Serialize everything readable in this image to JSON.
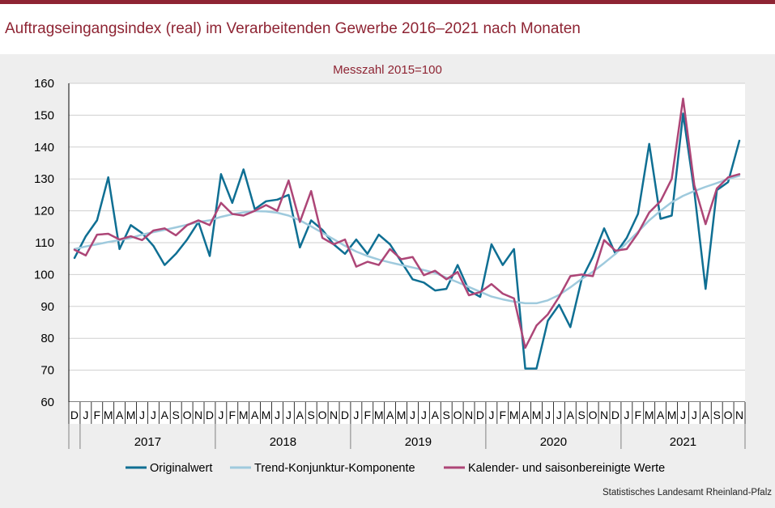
{
  "header": {
    "title": "Auftragseingangsindex (real) im Verarbeitenden Gewerbe 2016–2021 nach Monaten"
  },
  "source": "Statistisches Landesamt Rheinland-Pfalz",
  "chart_data": {
    "type": "line",
    "subtitle": "Messzahl 2015=100",
    "ylim": [
      60,
      160
    ],
    "yticks": [
      60,
      70,
      80,
      90,
      100,
      110,
      120,
      130,
      140,
      150,
      160
    ],
    "grid": true,
    "legend_position": "bottom",
    "month_labels": [
      "D",
      "J",
      "F",
      "M",
      "A",
      "M",
      "J",
      "J",
      "A",
      "S",
      "O",
      "N",
      "D",
      "J",
      "F",
      "M",
      "A",
      "M",
      "J",
      "J",
      "A",
      "S",
      "O",
      "N",
      "D",
      "J",
      "F",
      "M",
      "A",
      "M",
      "J",
      "J",
      "A",
      "S",
      "O",
      "N",
      "D",
      "J",
      "F",
      "M",
      "A",
      "M",
      "J",
      "J",
      "A",
      "S",
      "O",
      "N",
      "D",
      "J",
      "F",
      "M",
      "A",
      "M",
      "J",
      "J",
      "A",
      "S",
      "O",
      "N"
    ],
    "year_groups": [
      {
        "label": "2017",
        "start": 1,
        "end": 12
      },
      {
        "label": "2018",
        "start": 13,
        "end": 24
      },
      {
        "label": "2019",
        "start": 25,
        "end": 36
      },
      {
        "label": "2020",
        "start": 37,
        "end": 48
      },
      {
        "label": "2021",
        "start": 49,
        "end": 59
      }
    ],
    "series": [
      {
        "name": "Originalwert",
        "color": "#0f6f93",
        "width": 2.5,
        "values": [
          105.2,
          112,
          117,
          130.5,
          108,
          115.5,
          113,
          109,
          103,
          106.5,
          111,
          116.5,
          105.8,
          131.5,
          122.5,
          133,
          120.5,
          123,
          123.5,
          125,
          108.5,
          117,
          114,
          109.5,
          106.5,
          111,
          106.5,
          112.5,
          109.5,
          104,
          98.5,
          97.5,
          95,
          95.5,
          103,
          95,
          93,
          109.5,
          103,
          108,
          70.5,
          70.5,
          85.5,
          90.5,
          83.5,
          98.5,
          105.5,
          114.5,
          106.5,
          111.5,
          119,
          141,
          117.5,
          118.5,
          150.5,
          126,
          95.5,
          126.5,
          129,
          142
        ]
      },
      {
        "name": "Trend-Konjunktur-Komponente",
        "color": "#9fcadd",
        "width": 2.5,
        "values": [
          108,
          108.8,
          109.5,
          110.2,
          110.8,
          111.5,
          112.5,
          113.3,
          114,
          114.8,
          115.6,
          116.5,
          117,
          118.1,
          118.9,
          119.5,
          119.9,
          119.8,
          119.4,
          118.5,
          117,
          115.1,
          113.1,
          111.1,
          109,
          107.2,
          105.8,
          104.7,
          103.8,
          103,
          102.2,
          101.4,
          100.5,
          99,
          97.6,
          96.1,
          94.6,
          93.1,
          92.2,
          91.5,
          91,
          91,
          91.9,
          93.6,
          96,
          98.6,
          100.9,
          103.6,
          106.5,
          109.9,
          113.4,
          117,
          120,
          122.7,
          124.7,
          126.2,
          127.5,
          128.7,
          130,
          131
        ]
      },
      {
        "name": "Kalender- und saisonbereinigte Werte",
        "color": "#ad4677",
        "width": 2.5,
        "values": [
          107.8,
          106,
          112.5,
          112.8,
          111,
          112,
          110.8,
          113.8,
          114.5,
          112.3,
          115.5,
          117,
          115.5,
          122.5,
          119,
          118.5,
          120,
          121.8,
          120,
          129.5,
          116.5,
          126.2,
          111.5,
          109.5,
          111,
          102.5,
          104,
          103,
          108,
          104.8,
          105.5,
          99.8,
          101.2,
          98.5,
          100.8,
          93.5,
          94.5,
          97,
          94,
          92.5,
          77,
          84,
          87.5,
          93,
          99.5,
          100,
          99.5,
          110.8,
          107.5,
          108,
          113,
          119.5,
          123,
          130,
          155.2,
          128,
          115.8,
          127,
          130.5,
          131.5
        ]
      }
    ]
  }
}
